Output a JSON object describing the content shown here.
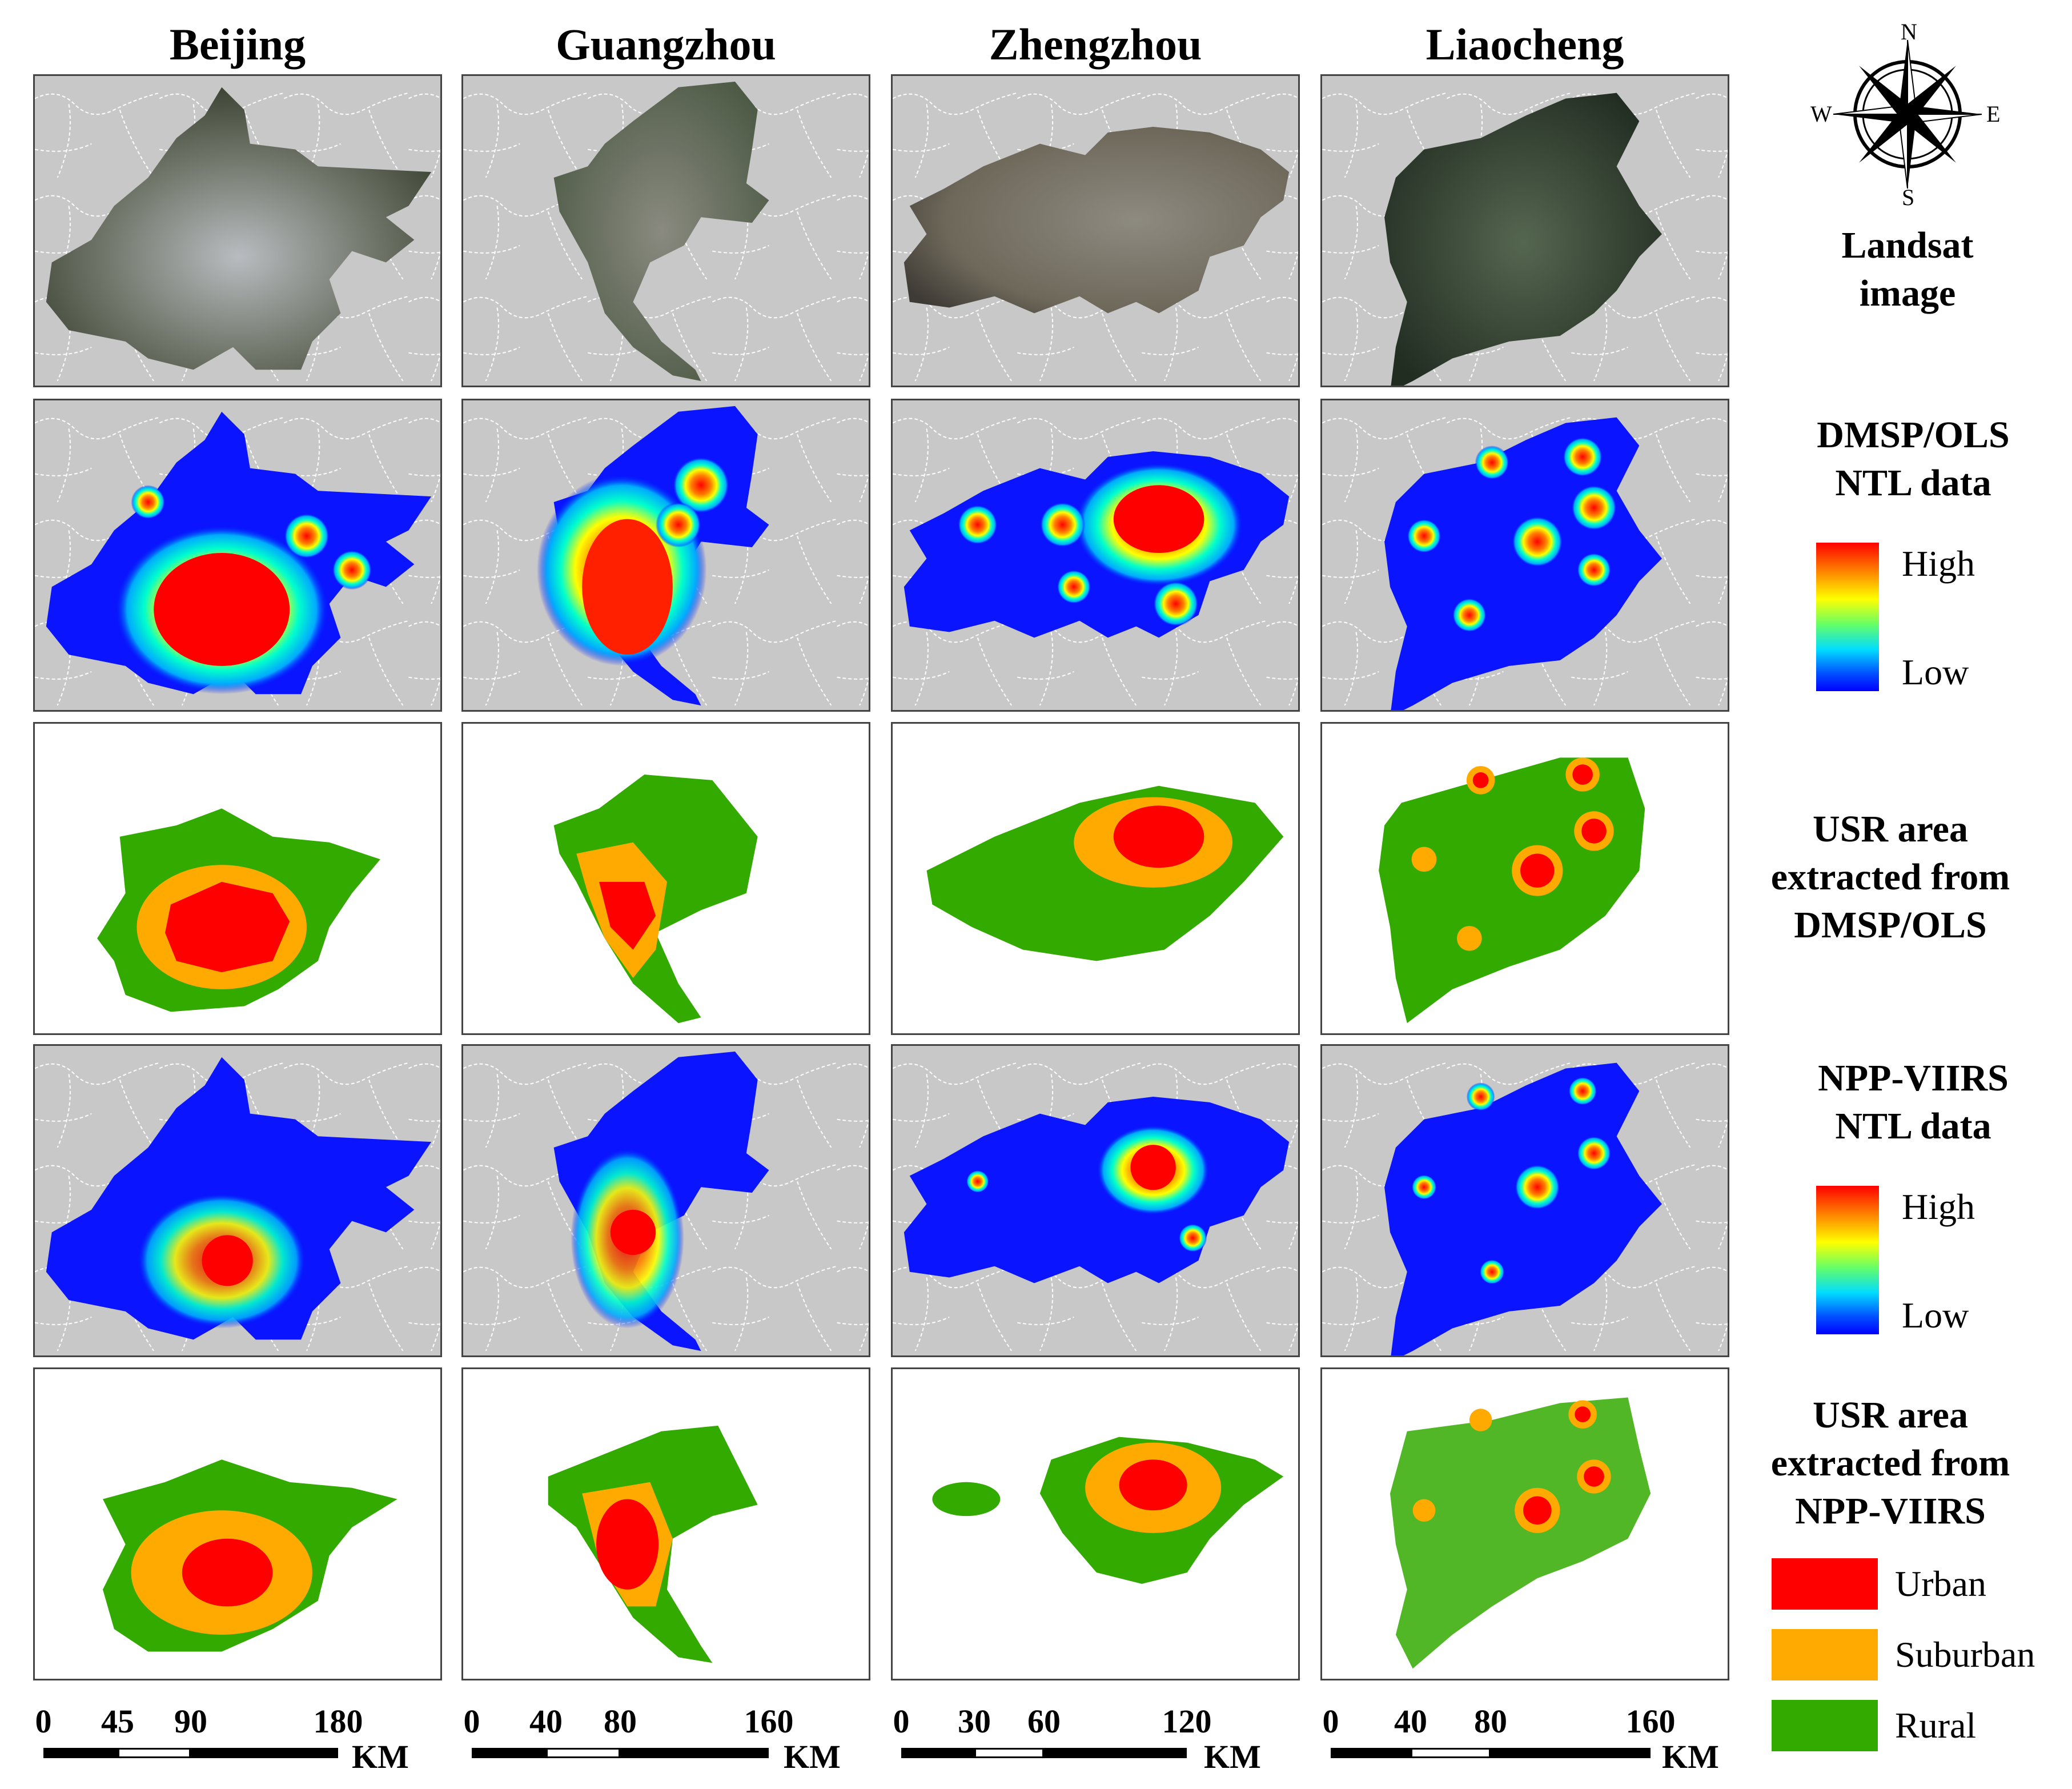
{
  "columns": [
    {
      "name": "Beijing"
    },
    {
      "name": "Guangzhou"
    },
    {
      "name": "Zhengzhou"
    },
    {
      "name": "Liaocheng"
    }
  ],
  "compass": {
    "n": "N",
    "s": "S",
    "e": "E",
    "w": "W"
  },
  "rows": [
    {
      "label": "Landsat image"
    },
    {
      "label": "DMSP/OLS NTL data"
    },
    {
      "label": "USR area extracted from DMSP/OLS"
    },
    {
      "label": "NPP-VIIRS NTL data"
    },
    {
      "label": "USR area extracted from NPP-VIIRS"
    }
  ],
  "colorbar": {
    "high": "High",
    "low": "Low"
  },
  "legend": [
    {
      "label": "Urban",
      "color": "#ff0000"
    },
    {
      "label": "Suburban",
      "color": "#ffaa00"
    },
    {
      "label": "Rural",
      "color": "#33aa00"
    }
  ],
  "scalebars": [
    {
      "ticks": [
        "0",
        "45",
        "90",
        "180"
      ],
      "unit": "KM"
    },
    {
      "ticks": [
        "0",
        "40",
        "80",
        "160"
      ],
      "unit": "KM"
    },
    {
      "ticks": [
        "0",
        "30",
        "60",
        "120"
      ],
      "unit": "KM"
    },
    {
      "ticks": [
        "0",
        "40",
        "80",
        "160"
      ],
      "unit": "KM"
    }
  ],
  "colors": {
    "background": "#c8c8c8",
    "boundary": "#ffffff",
    "ntl_low": "#0000ff",
    "ntl_high": "#ff0000",
    "urban": "#ff0000",
    "suburban": "#ffaa00",
    "rural": "#33aa00"
  }
}
